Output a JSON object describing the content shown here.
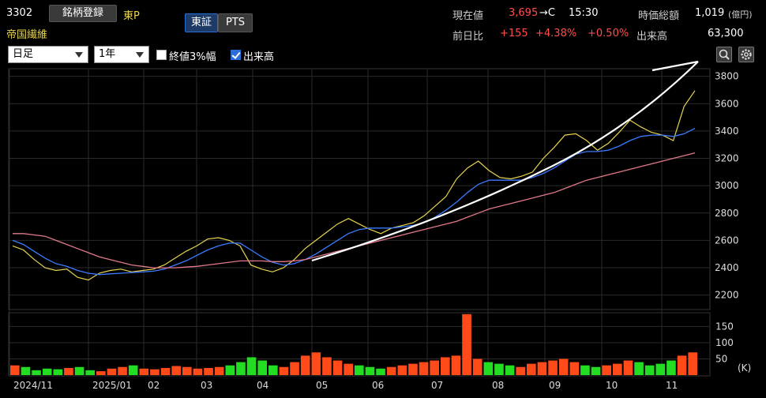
{
  "stock": {
    "code": "3302",
    "register_label": "銘柄登録",
    "market": "東P",
    "name": "帝国繊維"
  },
  "exchange_tabs": [
    {
      "label": "東証",
      "active": true
    },
    {
      "label": "PTS",
      "active": false
    }
  ],
  "quote": {
    "current_label": "現在値",
    "current_value": "3,695",
    "current_suffix": "→C",
    "time": "15:30",
    "prev_label": "前日比",
    "change": "+155",
    "change_pct": "+4.38%",
    "change_pct2": "+0.50%",
    "market_cap_label": "時価総額",
    "market_cap_value": "1,019",
    "market_cap_unit": "(億円)",
    "volume_label": "出来高",
    "volume_value": "63,300"
  },
  "controls": {
    "period_select": "日足",
    "range_select": "1年",
    "close3_label": "終値3%幅",
    "close3_checked": false,
    "volume_label": "出来高",
    "volume_checked": true
  },
  "icons": {
    "zoom": "zoom-icon",
    "settings": "gear-icon"
  },
  "colors": {
    "up": "#ff2a55",
    "down": "#24c24a",
    "ma_short": "#e8d44d",
    "ma_mid": "#3a7bff",
    "ma_long": "#e07a8a",
    "vol_up": "#ff4a1a",
    "vol_down": "#22dd22"
  },
  "chart_data": {
    "type": "line",
    "y_ticks": [
      2200,
      2400,
      2600,
      2800,
      3000,
      3200,
      3400,
      3600,
      3800
    ],
    "ylim": [
      2100,
      3850
    ],
    "x_labels": [
      "2024/11",
      "2025/01",
      "02",
      "03",
      "04",
      "05",
      "06",
      "07",
      "08",
      "09",
      "10",
      "11"
    ],
    "volume_ticks": [
      50,
      100,
      150
    ],
    "volume_unit": "(K)",
    "volume_ylim": [
      0,
      190
    ],
    "series": [
      {
        "values": [
          2560,
          2530,
          2460,
          2400,
          2380,
          2390,
          2330,
          2310,
          2360,
          2380,
          2390,
          2370,
          2380,
          2390,
          2420,
          2470,
          2520,
          2560,
          2610,
          2620,
          2600,
          2560,
          2420,
          2390,
          2370,
          2400,
          2460,
          2540,
          2600,
          2660,
          2720,
          2760,
          2720,
          2680,
          2650,
          2690,
          2710,
          2730,
          2780,
          2850,
          2920,
          3050,
          3130,
          3180,
          3110,
          3060,
          3050,
          3070,
          3100,
          3200,
          3280,
          3370,
          3380,
          3330,
          3260,
          3310,
          3390,
          3480,
          3430,
          3390,
          3370,
          3330,
          3580,
          3695
        ]
      },
      {
        "values": [
          2600,
          2570,
          2520,
          2470,
          2430,
          2410,
          2380,
          2360,
          2350,
          2355,
          2360,
          2365,
          2370,
          2375,
          2390,
          2420,
          2450,
          2490,
          2530,
          2560,
          2580,
          2580,
          2530,
          2480,
          2440,
          2420,
          2430,
          2460,
          2500,
          2550,
          2600,
          2650,
          2680,
          2690,
          2690,
          2690,
          2700,
          2710,
          2730,
          2770,
          2820,
          2880,
          2950,
          3010,
          3040,
          3040,
          3040,
          3040,
          3060,
          3090,
          3130,
          3180,
          3230,
          3250,
          3250,
          3260,
          3290,
          3330,
          3360,
          3370,
          3370,
          3360,
          3380,
          3420
        ]
      },
      {
        "values": [
          2650,
          2650,
          2640,
          2630,
          2600,
          2570,
          2540,
          2510,
          2480,
          2460,
          2440,
          2420,
          2410,
          2400,
          2400,
          2400,
          2405,
          2410,
          2420,
          2430,
          2440,
          2450,
          2450,
          2450,
          2445,
          2445,
          2450,
          2460,
          2480,
          2500,
          2520,
          2540,
          2560,
          2580,
          2600,
          2620,
          2640,
          2660,
          2680,
          2700,
          2720,
          2740,
          2770,
          2800,
          2830,
          2850,
          2870,
          2890,
          2910,
          2930,
          2950,
          2980,
          3010,
          3040,
          3060,
          3080,
          3100,
          3120,
          3140,
          3160,
          3180,
          3200,
          3220,
          3240
        ]
      }
    ],
    "volume": [
      30,
      25,
      15,
      20,
      18,
      22,
      25,
      15,
      12,
      20,
      25,
      30,
      20,
      18,
      22,
      28,
      25,
      20,
      22,
      25,
      30,
      40,
      55,
      45,
      30,
      25,
      40,
      60,
      70,
      55,
      45,
      35,
      30,
      25,
      20,
      25,
      30,
      35,
      40,
      45,
      55,
      60,
      188,
      50,
      40,
      35,
      30,
      25,
      35,
      40,
      45,
      50,
      40,
      30,
      25,
      30,
      35,
      45,
      40,
      30,
      35,
      45,
      60,
      70
    ]
  }
}
